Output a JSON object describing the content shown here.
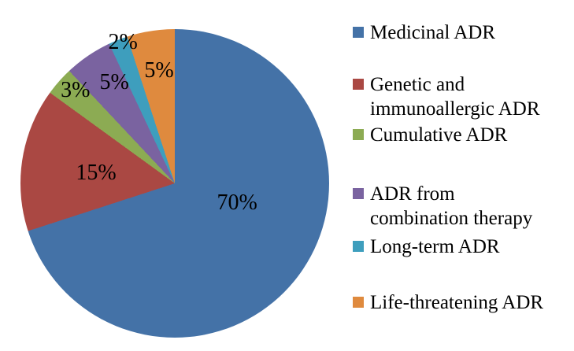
{
  "chart_data": {
    "type": "pie",
    "title": "",
    "start_angle_deg": 0,
    "direction": "clockwise",
    "legend_position": "right",
    "background_color": "#ffffff",
    "label_color": "#000000",
    "slices": [
      {
        "label": "Medicinal ADR",
        "value": 70,
        "value_label": "70%",
        "color": "#4472A7"
      },
      {
        "label": "Genetic and immunoallergic ADR",
        "value": 15,
        "value_label": "15%",
        "color": "#AA4843"
      },
      {
        "label": "Cumulative ADR",
        "value": 3,
        "value_label": "3%",
        "color": "#8CAB53"
      },
      {
        "label": "ADR from combination therapy",
        "value": 5,
        "value_label": "5%",
        "color": "#7A63A0"
      },
      {
        "label": "Long-term ADR",
        "value": 2,
        "value_label": "2%",
        "color": "#3E9EBD"
      },
      {
        "label": "Life-threatening ADR",
        "value": 5,
        "value_label": "5%",
        "color": "#DF8A3E"
      }
    ]
  },
  "legend": {
    "items": [
      {
        "lines": [
          "Medicinal ADR"
        ]
      },
      {
        "lines": [
          "Genetic and",
          "immunoallergic ADR"
        ]
      },
      {
        "lines": [
          "Cumulative ADR"
        ]
      },
      {
        "lines": [
          "ADR from",
          "combination therapy"
        ]
      },
      {
        "lines": [
          "Long-term ADR"
        ]
      },
      {
        "lines": [
          "Life-threatening ADR"
        ]
      }
    ]
  }
}
